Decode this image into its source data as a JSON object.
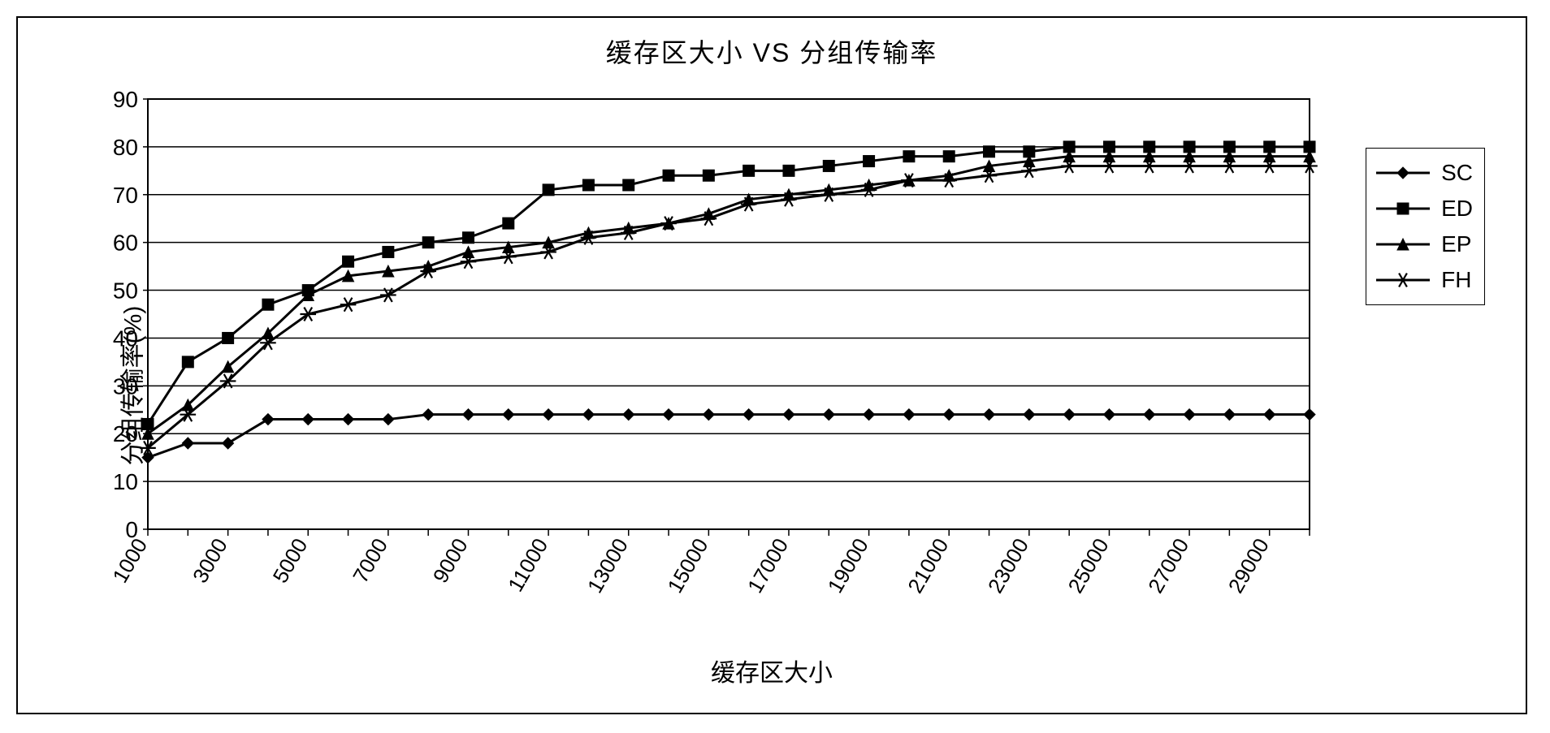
{
  "title": "缓存区大小 VS 分组传输率",
  "y_axis_label": "分组传输率(%)",
  "x_axis_label": "缓存区大小",
  "y_axis": {
    "min": 0,
    "max": 90,
    "ticks": [
      0,
      10,
      20,
      30,
      40,
      50,
      60,
      70,
      80,
      90
    ],
    "tick_fontsize": 28,
    "gridline_color": "#000000"
  },
  "x_axis": {
    "categories": [
      1000,
      2000,
      3000,
      4000,
      5000,
      6000,
      7000,
      8000,
      9000,
      10000,
      11000,
      12000,
      13000,
      14000,
      15000,
      16000,
      17000,
      18000,
      19000,
      20000,
      21000,
      22000,
      23000,
      24000,
      25000,
      26000,
      27000,
      28000,
      29000,
      30000
    ],
    "labels_every": 2,
    "label_start": 1000,
    "tick_fontsize": 26,
    "label_rotation": -60
  },
  "plot": {
    "background_color": "#ffffff",
    "border_color": "#000000",
    "line_width": 3,
    "marker_size": 7
  },
  "series": [
    {
      "name": "SC",
      "marker": "diamond",
      "color": "#000000",
      "values": [
        15,
        18,
        18,
        23,
        23,
        23,
        23,
        24,
        24,
        24,
        24,
        24,
        24,
        24,
        24,
        24,
        24,
        24,
        24,
        24,
        24,
        24,
        24,
        24,
        24,
        24,
        24,
        24,
        24,
        24
      ]
    },
    {
      "name": "ED",
      "marker": "square",
      "color": "#000000",
      "values": [
        22,
        35,
        40,
        47,
        50,
        56,
        58,
        60,
        61,
        64,
        71,
        72,
        72,
        74,
        74,
        75,
        75,
        76,
        77,
        78,
        78,
        79,
        79,
        80,
        80,
        80,
        80,
        80,
        80,
        80
      ]
    },
    {
      "name": "EP",
      "marker": "triangle",
      "color": "#000000",
      "values": [
        20,
        26,
        34,
        41,
        49,
        53,
        54,
        55,
        58,
        59,
        60,
        62,
        63,
        64,
        66,
        69,
        70,
        71,
        72,
        73,
        74,
        76,
        77,
        78,
        78,
        78,
        78,
        78,
        78,
        78
      ]
    },
    {
      "name": "FH",
      "marker": "star",
      "color": "#000000",
      "values": [
        17,
        24,
        31,
        39,
        45,
        47,
        49,
        54,
        56,
        57,
        58,
        61,
        62,
        64,
        65,
        68,
        69,
        70,
        71,
        73,
        73,
        74,
        75,
        76,
        76,
        76,
        76,
        76,
        76,
        76
      ]
    }
  ],
  "legend": {
    "labels": [
      "SC",
      "ED",
      "EP",
      "FH"
    ],
    "border_color": "#000000",
    "fontsize": 28,
    "position": "right"
  }
}
